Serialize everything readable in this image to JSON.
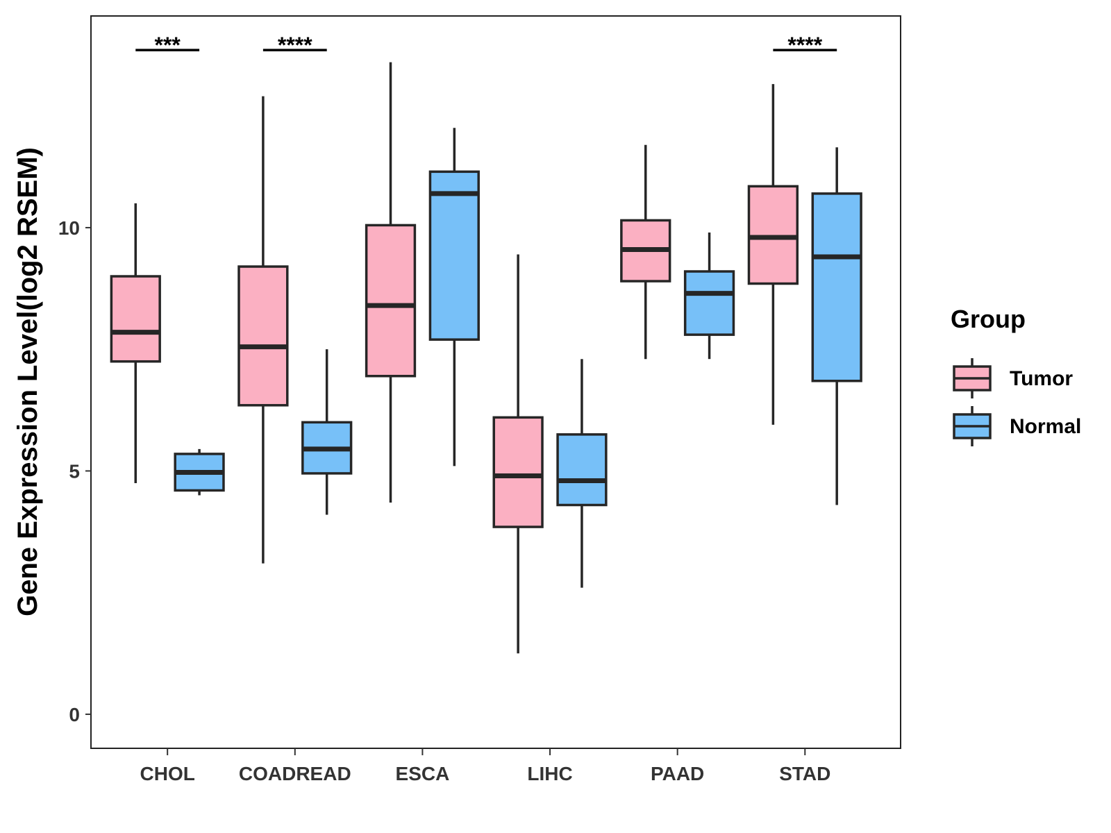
{
  "chart_data": {
    "type": "boxplot",
    "title": "",
    "xlabel": "",
    "ylabel": "Gene Expression Level(log2 RSEM)",
    "ylim": [
      -0.7,
      14.35
    ],
    "yticks": [
      0,
      5,
      10
    ],
    "categories": [
      "CHOL",
      "COADREAD",
      "ESCA",
      "LIHC",
      "PAAD",
      "STAD"
    ],
    "legend": {
      "title": "Group",
      "position": "right",
      "entries": [
        {
          "name": "Tumor",
          "color": "#FBB0C2"
        },
        {
          "name": "Normal",
          "color": "#77C0F8"
        }
      ]
    },
    "series": [
      {
        "name": "Tumor",
        "color": "#FBB0C2",
        "boxes": [
          {
            "category": "CHOL",
            "whisker_low": 4.75,
            "q1": 7.25,
            "median": 7.85,
            "q3": 9.0,
            "whisker_high": 10.5
          },
          {
            "category": "COADREAD",
            "whisker_low": 3.1,
            "q1": 6.35,
            "median": 7.55,
            "q3": 9.2,
            "whisker_high": 12.7
          },
          {
            "category": "ESCA",
            "whisker_low": 4.35,
            "q1": 6.95,
            "median": 8.4,
            "q3": 10.05,
            "whisker_high": 13.4
          },
          {
            "category": "LIHC",
            "whisker_low": 1.25,
            "q1": 3.85,
            "median": 4.9,
            "q3": 6.1,
            "whisker_high": 9.45
          },
          {
            "category": "PAAD",
            "whisker_low": 7.3,
            "q1": 8.9,
            "median": 9.55,
            "q3": 10.15,
            "whisker_high": 11.7
          },
          {
            "category": "STAD",
            "whisker_low": 5.95,
            "q1": 8.85,
            "median": 9.8,
            "q3": 10.85,
            "whisker_high": 12.95
          }
        ]
      },
      {
        "name": "Normal",
        "color": "#77C0F8",
        "boxes": [
          {
            "category": "CHOL",
            "whisker_low": 4.5,
            "q1": 4.6,
            "median": 4.97,
            "q3": 5.35,
            "whisker_high": 5.45
          },
          {
            "category": "COADREAD",
            "whisker_low": 4.1,
            "q1": 4.95,
            "median": 5.45,
            "q3": 6.0,
            "whisker_high": 7.5
          },
          {
            "category": "ESCA",
            "whisker_low": 5.1,
            "q1": 7.7,
            "median": 10.7,
            "q3": 11.15,
            "whisker_high": 12.05
          },
          {
            "category": "LIHC",
            "whisker_low": 2.6,
            "q1": 4.3,
            "median": 4.8,
            "q3": 5.75,
            "whisker_high": 7.3
          },
          {
            "category": "PAAD",
            "whisker_low": 7.3,
            "q1": 7.8,
            "median": 8.65,
            "q3": 9.1,
            "whisker_high": 9.9
          },
          {
            "category": "STAD",
            "whisker_low": 4.3,
            "q1": 6.85,
            "median": 9.4,
            "q3": 10.7,
            "whisker_high": 11.65
          }
        ]
      }
    ],
    "annotations": [
      {
        "category": "CHOL",
        "label": "***",
        "y": 13.65
      },
      {
        "category": "COADREAD",
        "label": "****",
        "y": 13.65
      },
      {
        "category": "STAD",
        "label": "****",
        "y": 13.65
      }
    ]
  }
}
